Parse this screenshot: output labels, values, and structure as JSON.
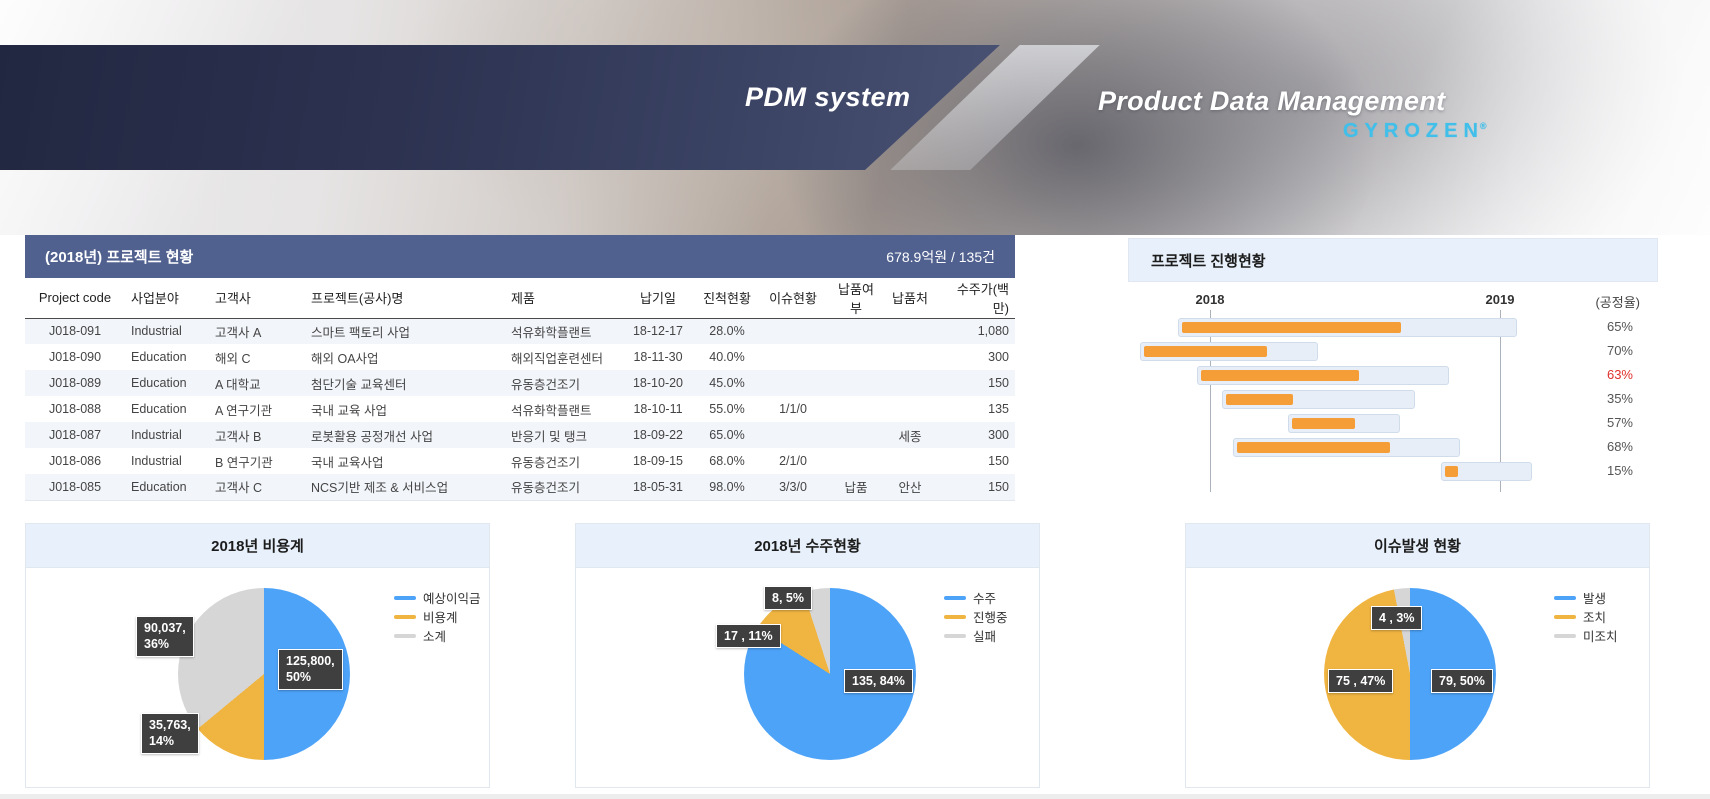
{
  "header": {
    "app_title": "PDM system",
    "subtitle": "Product Data Management",
    "brand": "GYROZEN",
    "brand_mark": "®"
  },
  "table": {
    "title": "(2018년) 프로젝트 현황",
    "summary": "678.9억원 / 135건",
    "columns": [
      "Project code",
      "사업분야",
      "고객사",
      "프로젝트(공사)명",
      "제품",
      "납기일",
      "진척현황",
      "이슈현황",
      "납품여부",
      "납품처",
      "수주가(백만)"
    ],
    "rows": [
      [
        "J018-091",
        "Industrial",
        "고객사 A",
        "스마트 팩토리 사업",
        "석유화학플랜트",
        "18-12-17",
        "28.0%",
        "",
        "",
        "",
        "1,080"
      ],
      [
        "J018-090",
        "Education",
        "해외 C",
        "해외 OA사업",
        "해외직업훈련센터",
        "18-11-30",
        "40.0%",
        "",
        "",
        "",
        "300"
      ],
      [
        "J018-089",
        "Education",
        "A 대학교",
        "첨단기술 교육센터",
        "유동층건조기",
        "18-10-20",
        "45.0%",
        "",
        "",
        "",
        "150"
      ],
      [
        "J018-088",
        "Education",
        "A 연구기관",
        "국내 교육 사업",
        "석유화학플랜트",
        "18-10-11",
        "55.0%",
        "1/1/0",
        "",
        "",
        "135"
      ],
      [
        "J018-087",
        "Industrial",
        "고객사 B",
        "로봇활용 공정개선 사업",
        "반응기 및 탱크",
        "18-09-22",
        "65.0%",
        "",
        "",
        "세종",
        "300"
      ],
      [
        "J018-086",
        "Industrial",
        "B 연구기관",
        "국내 교육사업",
        "유동층건조기",
        "18-09-15",
        "68.0%",
        "2/1/0",
        "",
        "",
        "150"
      ],
      [
        "J018-085",
        "Education",
        "고객사 C",
        "NCS기반 제조 & 서비스업",
        "유동층건조기",
        "18-05-31",
        "98.0%",
        "3/3/0",
        "납품",
        "안산",
        "150"
      ]
    ]
  },
  "chart_data": [
    {
      "type": "gantt",
      "title": "프로젝트 진행현황",
      "axis_labels": [
        "2018",
        "2019"
      ],
      "unit_label": "(공정율)",
      "gridlines_pct": [
        18,
        90.5
      ],
      "track_color": "#e7eef7",
      "bar_color": "#f59e38",
      "bars": [
        {
          "start_pct": 10.0,
          "width_pct": 84.25,
          "progress": "65%",
          "alert": false
        },
        {
          "start_pct": 0.5,
          "width_pct": 44.0,
          "progress": "70%",
          "alert": false
        },
        {
          "start_pct": 14.75,
          "width_pct": 62.5,
          "progress": "63%",
          "alert": true
        },
        {
          "start_pct": 21.0,
          "width_pct": 47.75,
          "progress": "35%",
          "alert": false
        },
        {
          "start_pct": 37.5,
          "width_pct": 27.5,
          "progress": "57%",
          "alert": false
        },
        {
          "start_pct": 23.75,
          "width_pct": 56.25,
          "progress": "68%",
          "alert": false
        },
        {
          "start_pct": 75.75,
          "width_pct": 22.25,
          "progress": "15%",
          "alert": false
        }
      ]
    },
    {
      "type": "pie",
      "title": "2018년 비용계",
      "legend_position": "right",
      "slices": [
        {
          "name": "예상이익금",
          "value": 125800,
          "pct": 50,
          "label": "125,800,\n50%",
          "color": "#4da3f8"
        },
        {
          "name": "비용계",
          "value": 35763,
          "pct": 14,
          "label": "35,763,\n14%",
          "color": "#f0b541"
        },
        {
          "name": "소계",
          "value": 90037,
          "pct": 36,
          "label": "90,037,\n36%",
          "color": "#d6d6d6"
        }
      ]
    },
    {
      "type": "pie",
      "title": "2018년 수주현황",
      "legend_position": "right",
      "slices": [
        {
          "name": "수주",
          "value": 135,
          "pct": 84,
          "label": "135, 84%",
          "color": "#4da3f8"
        },
        {
          "name": "진행중",
          "value": 17,
          "pct": 11,
          "label": "17 , 11%",
          "color": "#f0b541"
        },
        {
          "name": "실패",
          "value": 8,
          "pct": 5,
          "label": "8, 5%",
          "color": "#d6d6d6"
        }
      ]
    },
    {
      "type": "pie",
      "title": "이슈발생 현황",
      "legend_position": "right",
      "slices": [
        {
          "name": "발생",
          "value": 79,
          "pct": 50,
          "label": "79, 50%",
          "color": "#4da3f8"
        },
        {
          "name": "조치",
          "value": 75,
          "pct": 47,
          "label": "75 , 47%",
          "color": "#f0b541"
        },
        {
          "name": "미조치",
          "value": 4,
          "pct": 3,
          "label": "4 , 3%",
          "color": "#d6d6d6"
        }
      ]
    }
  ],
  "colors": {
    "table_header_bg": "#50618f",
    "panel_header_bg": "#e8f1fb",
    "link_blue": "#3b63d6",
    "alert_red": "#e0312c",
    "bar_orange": "#f59e38",
    "pie_blue": "#4da3f8",
    "pie_orange": "#f0b541",
    "pie_gray": "#d6d6d6"
  }
}
